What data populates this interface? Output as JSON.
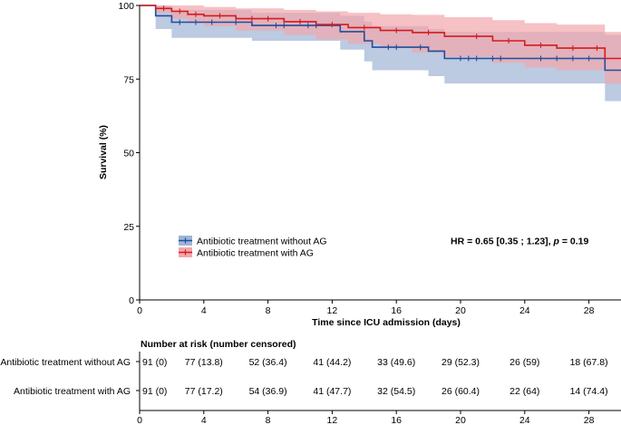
{
  "chart_data": {
    "type": "kaplan-meier",
    "ylabel": "Survival (%)",
    "xlabel": "Time since ICU admission (days)",
    "xlim": [
      0,
      30
    ],
    "ylim": [
      0,
      100
    ],
    "xticks": [
      0,
      4,
      8,
      12,
      16,
      20,
      24,
      28
    ],
    "yticks": [
      0,
      25,
      50,
      75,
      100
    ],
    "annotation": {
      "hr_prefix": "HR = 0.65 [0.35 ; 1.23], ",
      "p_label": "p",
      "p_suffix": " = 0.19"
    },
    "series": [
      {
        "name": "Antibiotic treatment without AG",
        "color": "#1f4e9c",
        "band_color": "#9fb4d6",
        "steps": [
          [
            0,
            100
          ],
          [
            1,
            96.5
          ],
          [
            2,
            94.3
          ],
          [
            7,
            93.2
          ],
          [
            12.5,
            91.1
          ],
          [
            14,
            88.0
          ],
          [
            14.5,
            85.8
          ],
          [
            18,
            84.5
          ],
          [
            19,
            82.0
          ],
          [
            24,
            82.0
          ],
          [
            29,
            78.0
          ],
          [
            30,
            78.0
          ]
        ],
        "lower": [
          [
            0,
            100
          ],
          [
            1,
            92.0
          ],
          [
            2,
            89.0
          ],
          [
            7,
            88.0
          ],
          [
            12.5,
            85.0
          ],
          [
            14,
            81.0
          ],
          [
            14.5,
            78.0
          ],
          [
            18,
            76.0
          ],
          [
            19,
            73.5
          ],
          [
            24,
            73.5
          ],
          [
            29,
            67.5
          ],
          [
            30,
            67.5
          ]
        ],
        "upper": [
          [
            0,
            100
          ],
          [
            1,
            100
          ],
          [
            2,
            98.5
          ],
          [
            7,
            97.5
          ],
          [
            12.5,
            96.5
          ],
          [
            14,
            94.5
          ],
          [
            14.5,
            93.0
          ],
          [
            18,
            92.0
          ],
          [
            19,
            91.0
          ],
          [
            24,
            91.0
          ],
          [
            29,
            90.0
          ],
          [
            30,
            90.0
          ]
        ],
        "censor_times": [
          2.5,
          3.5,
          4.5,
          6,
          8.5,
          9,
          10.5,
          11,
          15.5,
          16,
          17.5,
          20,
          20.5,
          21,
          22,
          22.5,
          25,
          26,
          27,
          28
        ]
      },
      {
        "name": "Antibiotic treatment with AG",
        "color": "#d7191c",
        "band_color": "#f2a7ab",
        "steps": [
          [
            0,
            100
          ],
          [
            1,
            99.0
          ],
          [
            2,
            98.0
          ],
          [
            3,
            97.0
          ],
          [
            4,
            96.5
          ],
          [
            6,
            95.5
          ],
          [
            9,
            94.5
          ],
          [
            11,
            93.5
          ],
          [
            13,
            92.5
          ],
          [
            15,
            91.5
          ],
          [
            17,
            90.8
          ],
          [
            19,
            89.5
          ],
          [
            20,
            89.5
          ],
          [
            22,
            88.0
          ],
          [
            24,
            86.5
          ],
          [
            26,
            85.5
          ],
          [
            29,
            82.0
          ],
          [
            30,
            82.0
          ]
        ],
        "lower": [
          [
            0,
            100
          ],
          [
            1,
            97.5
          ],
          [
            2,
            95.5
          ],
          [
            3,
            94.0
          ],
          [
            4,
            93.0
          ],
          [
            6,
            91.5
          ],
          [
            9,
            90.0
          ],
          [
            11,
            88.5
          ],
          [
            13,
            87.0
          ],
          [
            15,
            85.5
          ],
          [
            17,
            84.0
          ],
          [
            19,
            82.5
          ],
          [
            20,
            82.5
          ],
          [
            22,
            80.5
          ],
          [
            24,
            79.0
          ],
          [
            26,
            78.0
          ],
          [
            29,
            73.5
          ],
          [
            30,
            73.5
          ]
        ],
        "upper": [
          [
            0,
            100
          ],
          [
            1,
            100
          ],
          [
            2,
            100
          ],
          [
            3,
            100
          ],
          [
            4,
            99.5
          ],
          [
            6,
            99.0
          ],
          [
            9,
            98.5
          ],
          [
            11,
            98.0
          ],
          [
            13,
            97.5
          ],
          [
            15,
            97.0
          ],
          [
            17,
            96.8
          ],
          [
            19,
            96.0
          ],
          [
            20,
            96.0
          ],
          [
            22,
            95.0
          ],
          [
            24,
            94.0
          ],
          [
            26,
            93.5
          ],
          [
            29,
            91.0
          ],
          [
            30,
            91.0
          ]
        ],
        "censor_times": [
          1.5,
          2.5,
          3.5,
          5,
          7,
          8,
          10,
          12,
          14,
          16,
          18,
          21,
          23,
          25,
          27,
          28.5
        ]
      }
    ],
    "risk_table": {
      "title": "Number at risk (number censored)",
      "times": [
        0,
        4,
        8,
        12,
        16,
        20,
        24,
        28
      ],
      "rows": [
        {
          "label": "Antibiotic treatment without AG",
          "values": [
            "91 (0)",
            "77 (13.8)",
            "52 (36.4)",
            "41 (44.2)",
            "33 (49.6)",
            "29 (52.3)",
            "26 (59)",
            "18 (67.8)"
          ]
        },
        {
          "label": "Antibiotic treatment with AG",
          "values": [
            "91 (0)",
            "77 (17.2)",
            "54 (36.9)",
            "41 (47.7)",
            "32 (54.5)",
            "26 (60.4)",
            "22 (64)",
            "14 (74.4)"
          ]
        }
      ]
    }
  }
}
